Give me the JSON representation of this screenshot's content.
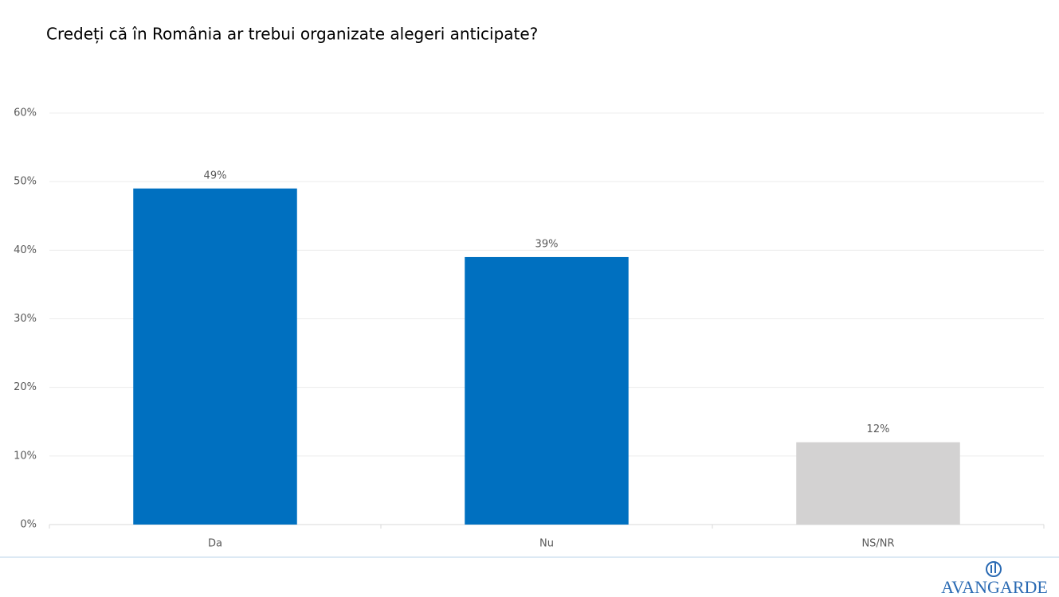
{
  "chart_data": {
    "type": "bar",
    "title": "Credeți că în România ar trebui organizate alegeri anticipate?",
    "categories": [
      "Da",
      "Nu",
      "NS/NR"
    ],
    "values": [
      49,
      39,
      12
    ],
    "value_labels": [
      "49%",
      "39%",
      "12%"
    ],
    "colors": [
      "#0070c0",
      "#0070c0",
      "#d3d2d2"
    ],
    "ylim": [
      0,
      60
    ],
    "yticks": [
      {
        "value": 0,
        "label": "0%"
      },
      {
        "value": 10,
        "label": "10%"
      },
      {
        "value": 20,
        "label": "20%"
      },
      {
        "value": 30,
        "label": "30%"
      },
      {
        "value": 40,
        "label": "40%"
      },
      {
        "value": 50,
        "label": "50%"
      },
      {
        "value": 60,
        "label": "60%"
      }
    ],
    "grid": true
  },
  "logo": "AVANGARDE"
}
